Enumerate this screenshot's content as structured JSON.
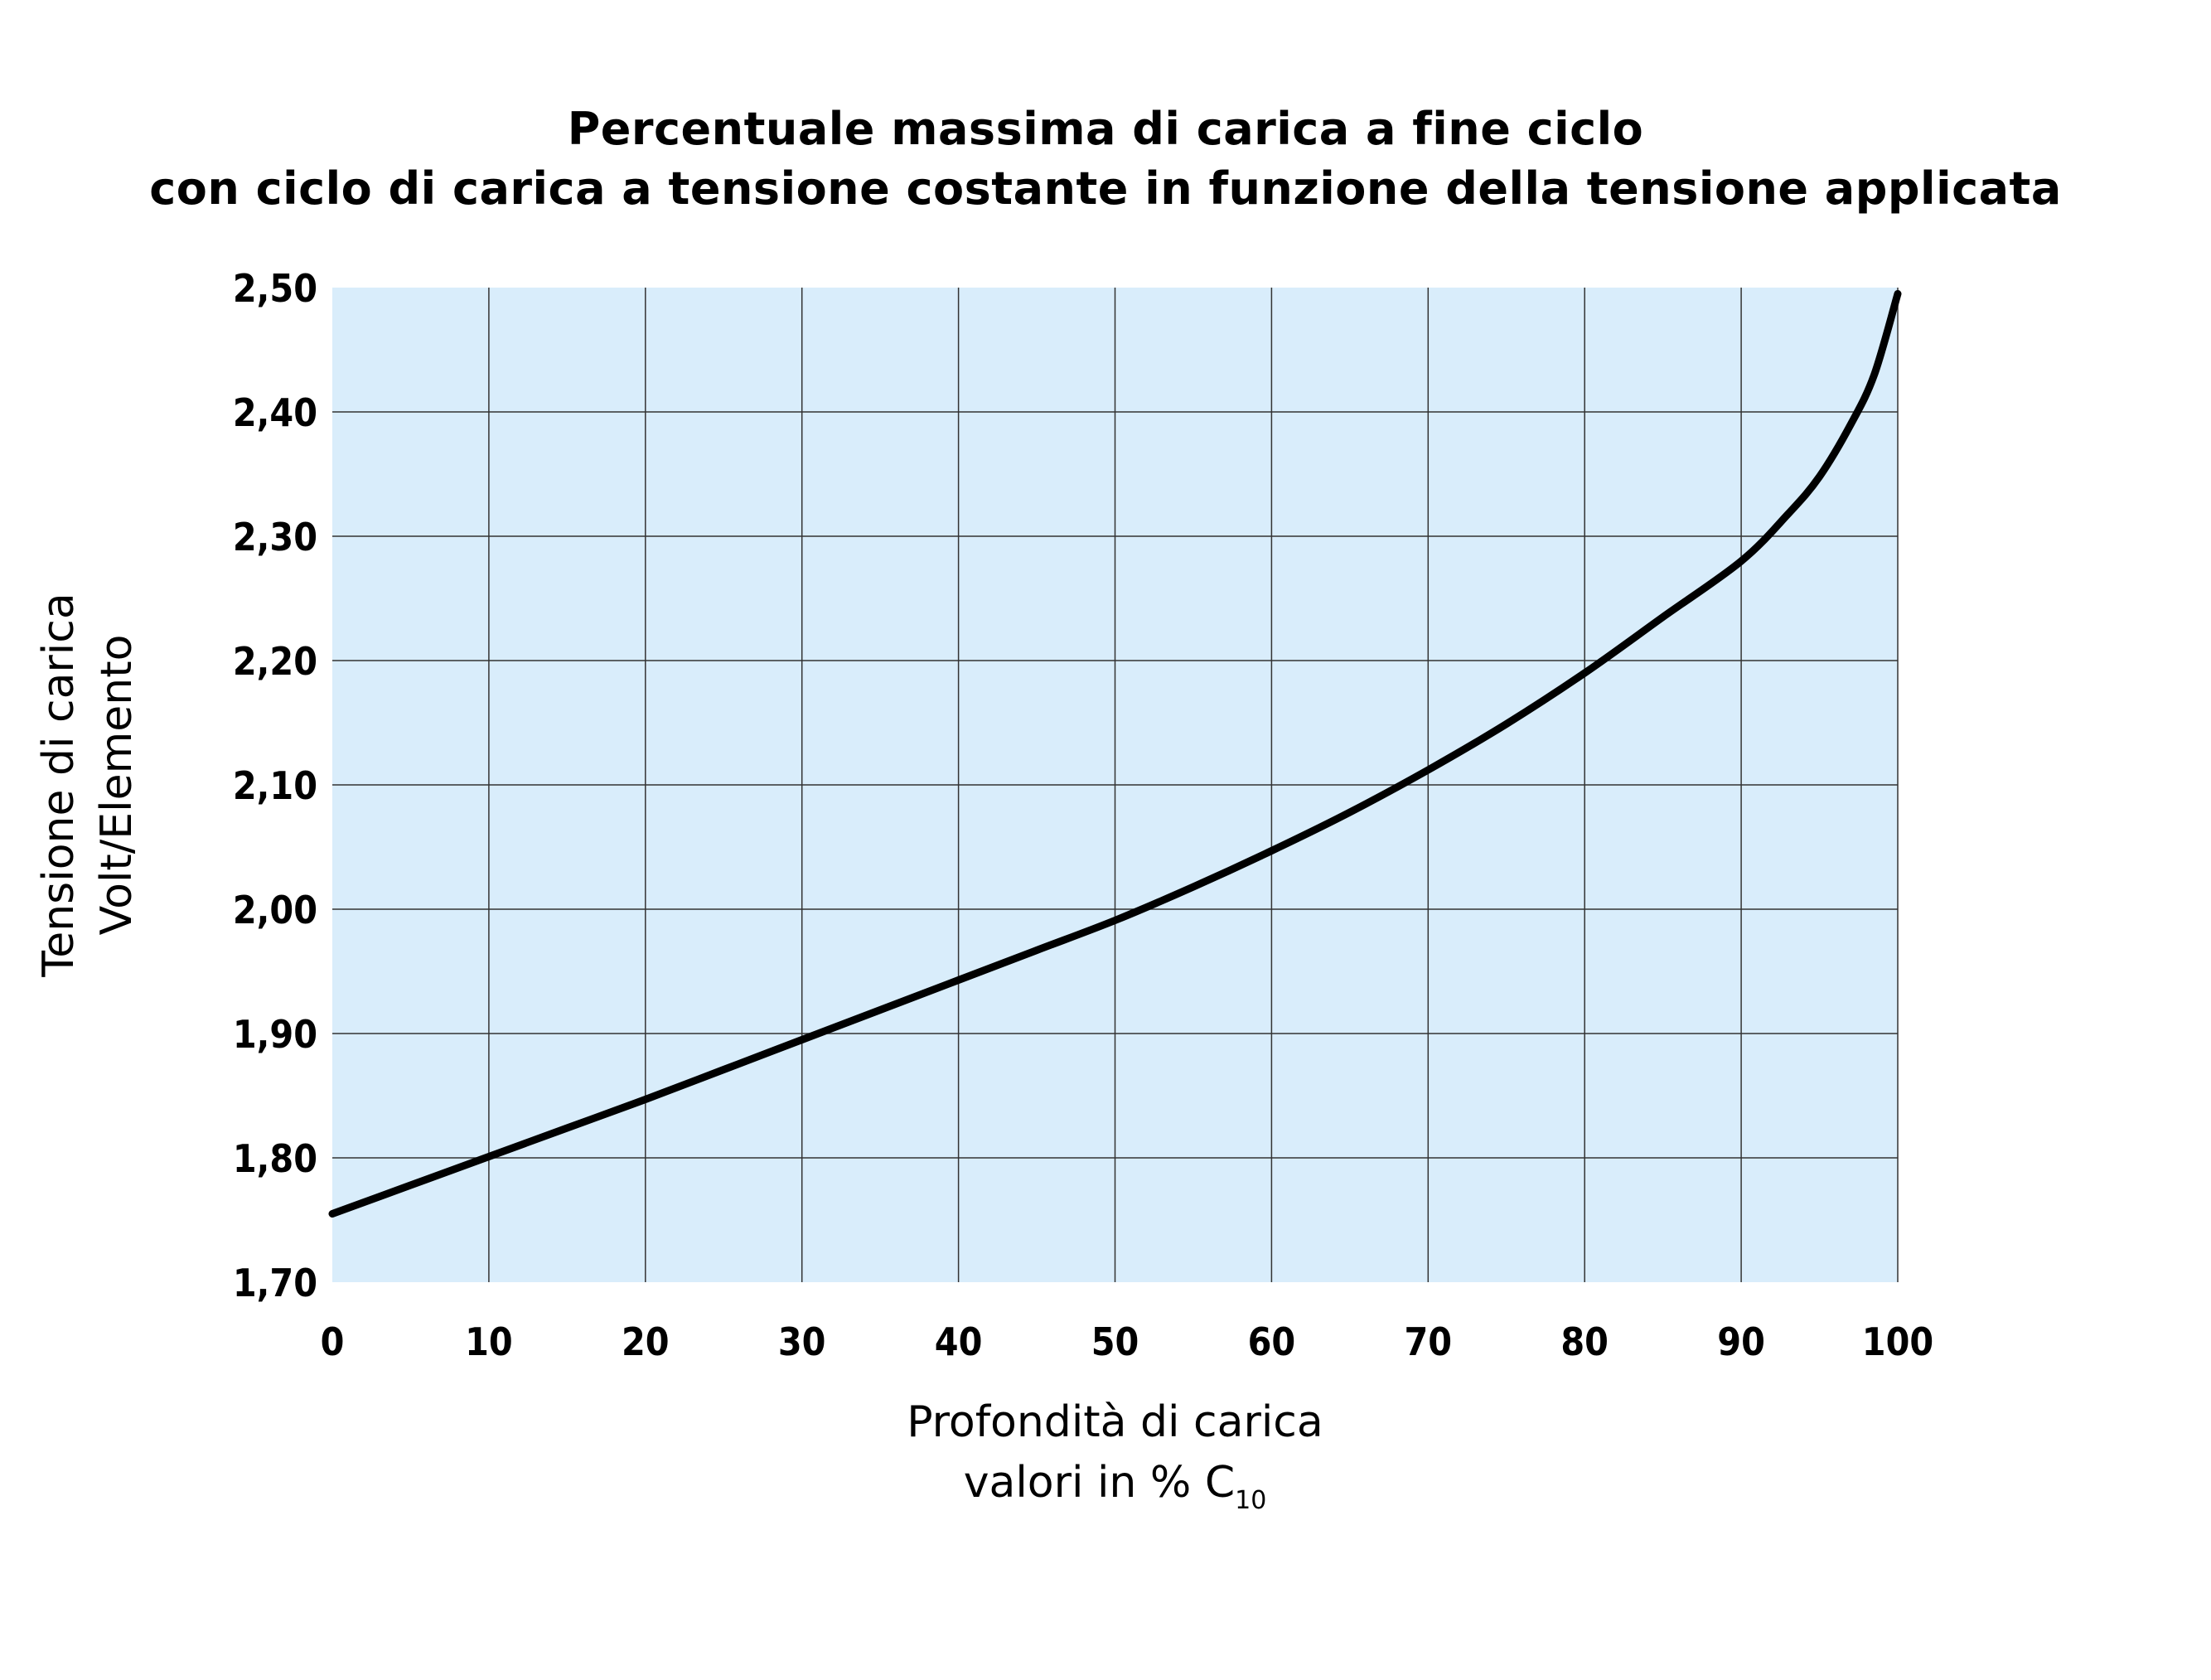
{
  "title_line1": "Percentuale massima di carica a fine ciclo",
  "title_line2": "con ciclo di carica a tensione costante in funzione della tensione applicata",
  "chart_data": {
    "type": "line",
    "title": "Percentuale massima di carica a fine ciclo con ciclo di carica a tensione costante in funzione della tensione applicata",
    "xlabel": [
      "Profondità di carica",
      "valori in % C10"
    ],
    "xlabel_line1": "Profondità di carica",
    "xlabel_line2_text": "valori in % C",
    "xlabel_subscript": "10",
    "ylabel_line1": "Tensione di carica",
    "ylabel_line2": "Volt/Elemento",
    "xlim": [
      0,
      100
    ],
    "ylim": [
      1.7,
      2.5
    ],
    "x_ticks": [
      0,
      10,
      20,
      30,
      40,
      50,
      60,
      70,
      80,
      90,
      100
    ],
    "x_tick_labels": [
      "0",
      "10",
      "20",
      "30",
      "40",
      "50",
      "60",
      "70",
      "80",
      "90",
      "100"
    ],
    "y_ticks": [
      1.7,
      1.8,
      1.9,
      2.0,
      2.1,
      2.2,
      2.3,
      2.4,
      2.5
    ],
    "y_tick_labels": [
      "1,70",
      "1,80",
      "1,90",
      "2,00",
      "2,10",
      "2,20",
      "2,30",
      "2,40",
      "2,50"
    ],
    "grid": true,
    "background_color": "#d9edfb",
    "line_color": "#000000",
    "series": [
      {
        "x": [
          0,
          5,
          10,
          15,
          20,
          25,
          30,
          35,
          40,
          45,
          50,
          55,
          60,
          65,
          70,
          75,
          80,
          85,
          90,
          93,
          95,
          97,
          98.5,
          100
        ],
        "values": [
          1.755,
          1.778,
          1.801,
          1.824,
          1.847,
          1.871,
          1.895,
          1.919,
          1.943,
          1.967,
          1.991,
          2.018,
          2.047,
          2.078,
          2.112,
          2.149,
          2.19,
          2.235,
          2.28,
          2.318,
          2.348,
          2.39,
          2.43,
          2.495
        ]
      }
    ]
  }
}
